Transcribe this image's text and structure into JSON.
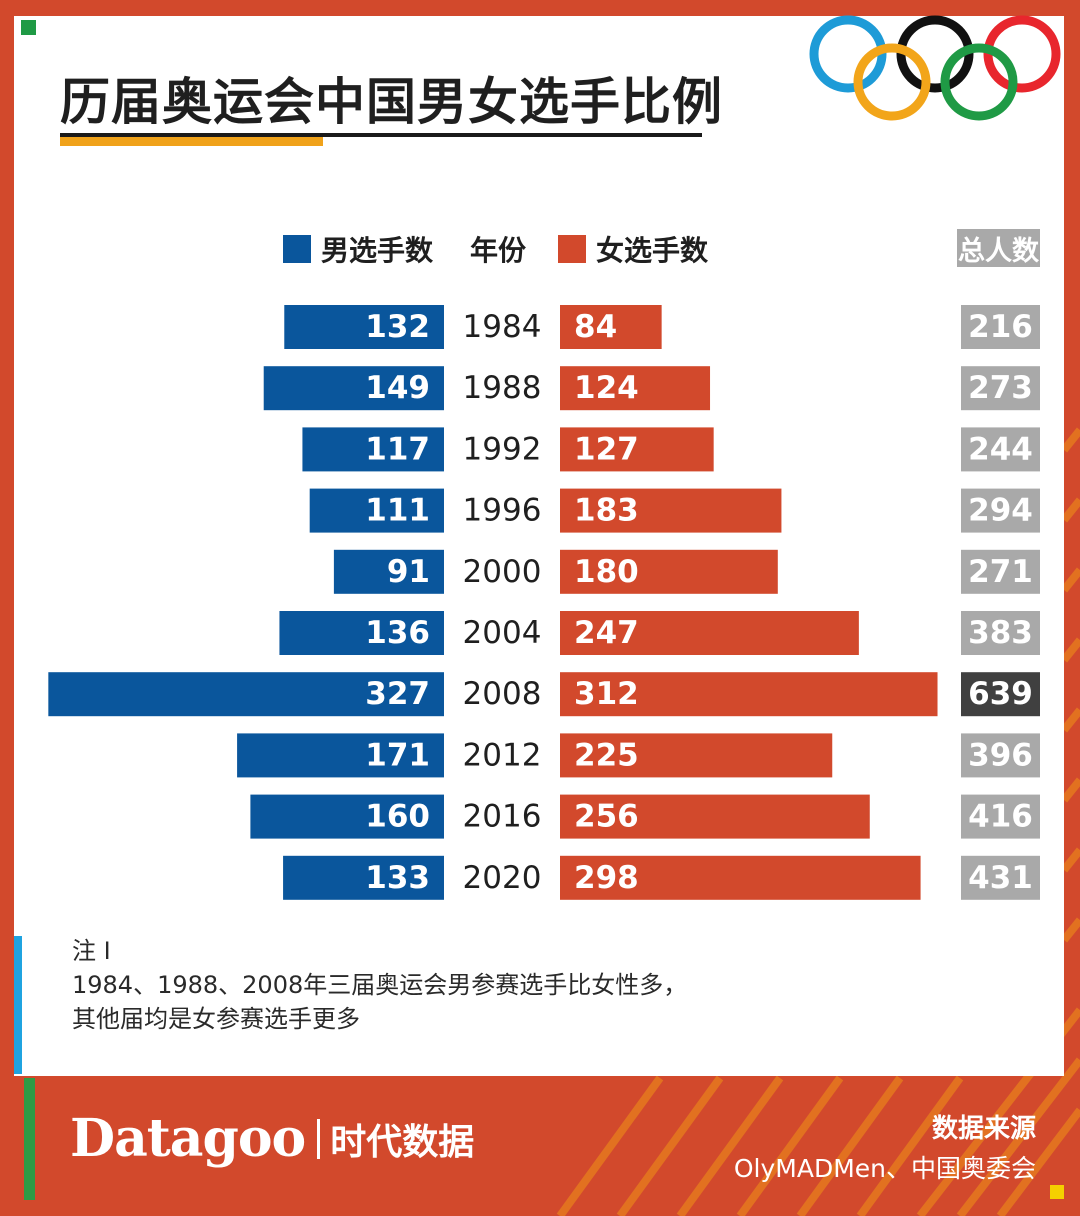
{
  "title": "历届奥运会中国男女选手比例",
  "legend": {
    "male_label": "男选手数",
    "year_label": "年份",
    "female_label": "女选手数",
    "total_label": "总人数"
  },
  "colors": {
    "male": "#0a569c",
    "female": "#d2492c",
    "total": "#a9a9a9",
    "total_highlight": "#404040"
  },
  "chart_data": {
    "type": "bar",
    "categories": [
      "1984",
      "1988",
      "1992",
      "1996",
      "2000",
      "2004",
      "2008",
      "2012",
      "2016",
      "2020"
    ],
    "series": [
      {
        "name": "男选手数",
        "values": [
          132,
          149,
          117,
          111,
          91,
          136,
          327,
          171,
          160,
          133
        ]
      },
      {
        "name": "女选手数",
        "values": [
          84,
          124,
          127,
          183,
          180,
          247,
          312,
          225,
          256,
          298
        ]
      },
      {
        "name": "总人数",
        "values": [
          216,
          273,
          244,
          294,
          271,
          383,
          639,
          396,
          416,
          431
        ]
      }
    ],
    "highlight_category": "2008"
  },
  "note": {
    "heading": "注 I",
    "line1": "1984、1988、2008年三届奥运会男参赛选手比女性多，",
    "line2": "其他届均是女参赛选手更多"
  },
  "brand": {
    "main": "Datagoo",
    "sub": "时代数据"
  },
  "source": {
    "title": "数据来源",
    "text": "OlyMADMen、中国奥委会"
  }
}
